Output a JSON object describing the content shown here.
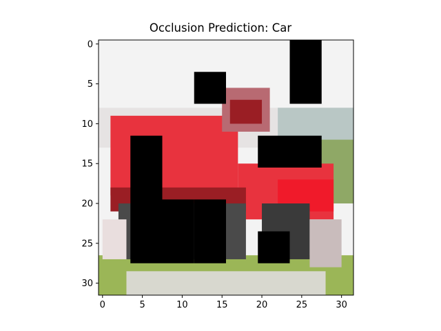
{
  "title": "Occlusion Prediction: Car",
  "axes": {
    "x_ticks": [
      "0",
      "5",
      "10",
      "15",
      "20",
      "25",
      "30"
    ],
    "y_ticks": [
      "0",
      "5",
      "10",
      "15",
      "20",
      "25",
      "30"
    ],
    "x_range": [
      0,
      32
    ],
    "y_range": [
      0,
      32
    ]
  },
  "image": {
    "subject": "red pickup truck on grass, low-resolution 32x32 pixelated",
    "occlusion_color": "#000000",
    "colors": {
      "sky": "#f3f3f3",
      "truck_red": "#e8333e",
      "truck_dark_red": "#9a1e24",
      "grass": "#9bb657",
      "shadow": "#4a4a4a"
    },
    "occlusion_patches": [
      {
        "x0": 23.5,
        "y0": -0.5,
        "x1": 27.5,
        "y1": 7.5
      },
      {
        "x0": 11.5,
        "y0": 3.5,
        "x1": 15.5,
        "y1": 7.5
      },
      {
        "x0": 3.5,
        "y0": 11.5,
        "x1": 7.5,
        "y1": 27.5
      },
      {
        "x0": 19.5,
        "y0": 11.5,
        "x1": 27.5,
        "y1": 15.5
      },
      {
        "x0": 7.5,
        "y0": 19.5,
        "x1": 11.5,
        "y1": 27.5
      },
      {
        "x0": 11.5,
        "y0": 19.5,
        "x1": 15.5,
        "y1": 27.5
      },
      {
        "x0": 19.5,
        "y0": 23.5,
        "x1": 23.5,
        "y1": 27.5
      }
    ]
  }
}
